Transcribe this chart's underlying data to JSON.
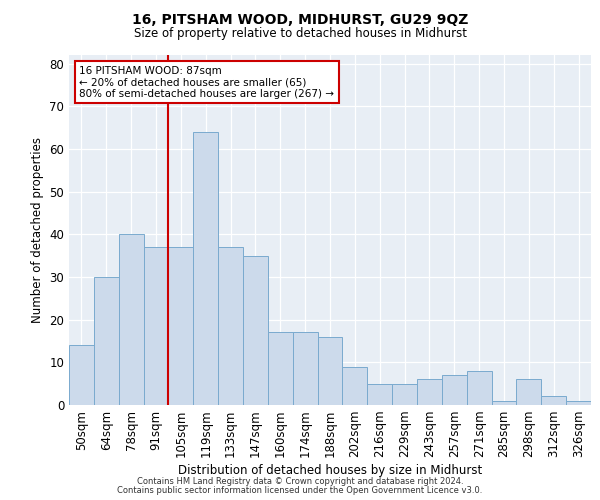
{
  "title": "16, PITSHAM WOOD, MIDHURST, GU29 9QZ",
  "subtitle": "Size of property relative to detached houses in Midhurst",
  "xlabel": "Distribution of detached houses by size in Midhurst",
  "ylabel": "Number of detached properties",
  "categories": [
    "50sqm",
    "64sqm",
    "78sqm",
    "91sqm",
    "105sqm",
    "119sqm",
    "133sqm",
    "147sqm",
    "160sqm",
    "174sqm",
    "188sqm",
    "202sqm",
    "216sqm",
    "229sqm",
    "243sqm",
    "257sqm",
    "271sqm",
    "285sqm",
    "298sqm",
    "312sqm",
    "326sqm"
  ],
  "values": [
    14,
    30,
    40,
    37,
    37,
    64,
    37,
    35,
    17,
    17,
    16,
    9,
    5,
    5,
    6,
    7,
    8,
    1,
    6,
    2,
    1
  ],
  "bar_color": "#ccdaeb",
  "bar_edge_color": "#7aaace",
  "background_color": "#e8eef5",
  "vline_color": "#cc0000",
  "vline_pos": 3.5,
  "annotation_line1": "16 PITSHAM WOOD: 87sqm",
  "annotation_line2": "← 20% of detached houses are smaller (65)",
  "annotation_line3": "80% of semi-detached houses are larger (267) →",
  "ylim": [
    0,
    82
  ],
  "yticks": [
    0,
    10,
    20,
    30,
    40,
    50,
    60,
    70,
    80
  ],
  "footer_line1": "Contains HM Land Registry data © Crown copyright and database right 2024.",
  "footer_line2": "Contains public sector information licensed under the Open Government Licence v3.0."
}
